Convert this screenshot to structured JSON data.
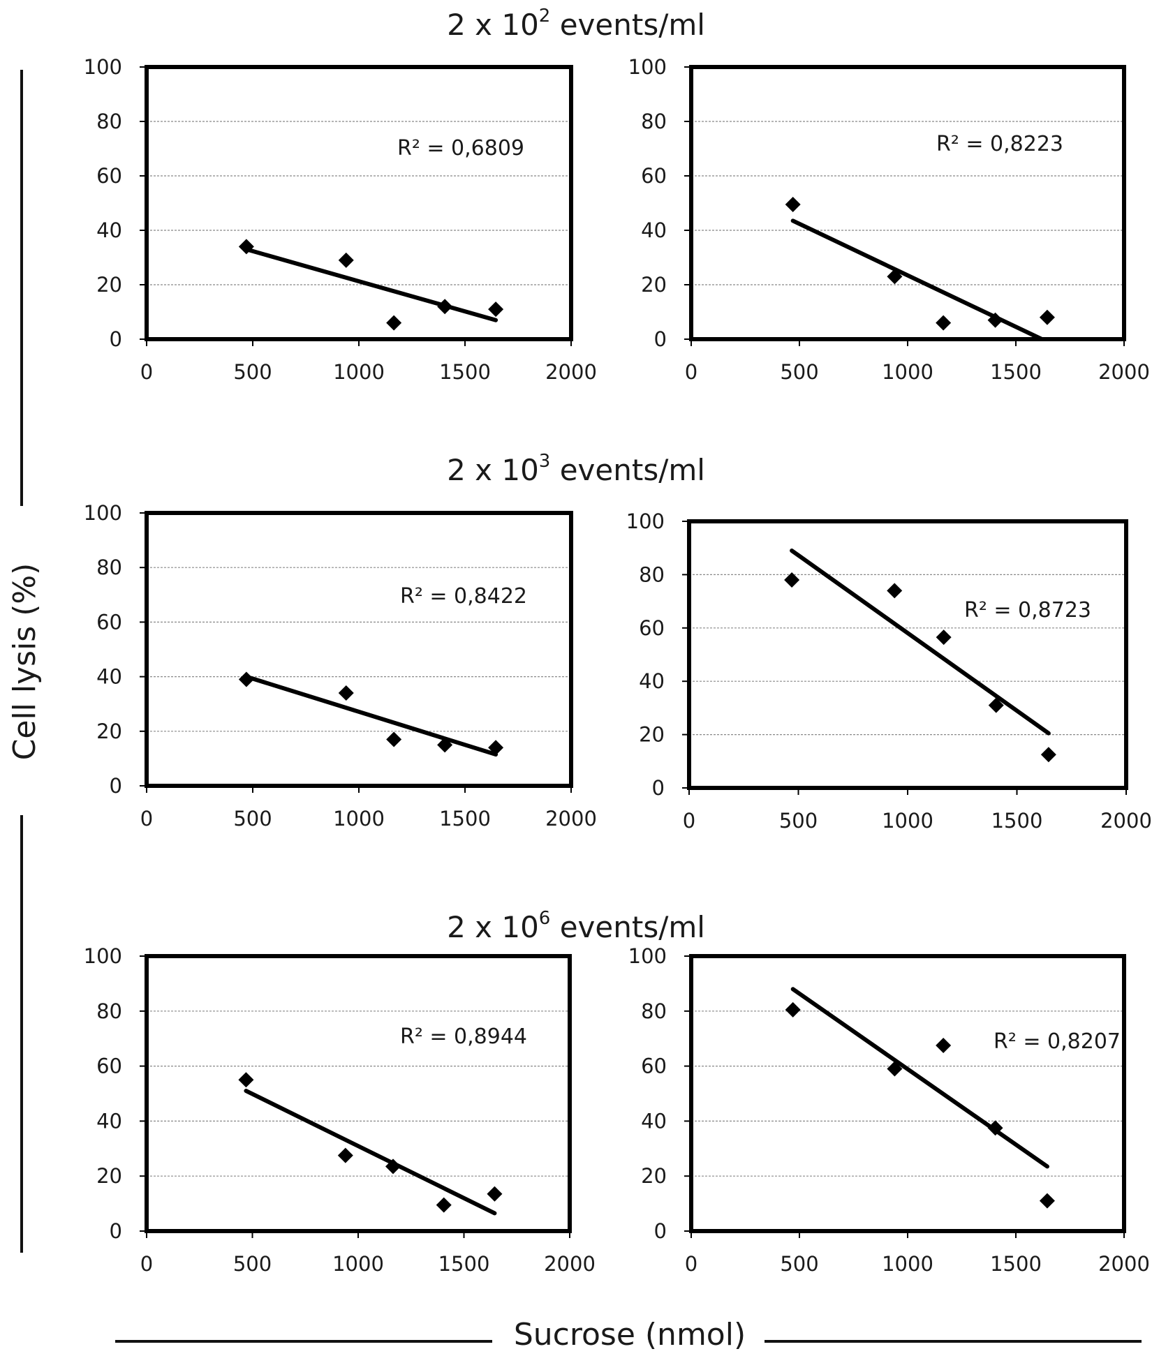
{
  "figure": {
    "ylabel": "Cell lysis (%)",
    "xlabel": "Sucrose (nmol)",
    "row_titles": [
      {
        "prefix": "2 x 10",
        "exponent": "2",
        "suffix": " events/ml"
      },
      {
        "prefix": "2 x 10",
        "exponent": "3",
        "suffix": " events/ml"
      },
      {
        "prefix": "2 x 10",
        "exponent": "6",
        "suffix": " events/ml"
      }
    ]
  },
  "chart_data": [
    {
      "type": "scatter",
      "id": "r1-left",
      "row": 1,
      "col": "left",
      "x": [
        470,
        940,
        1165,
        1405,
        1645
      ],
      "y": [
        34,
        29,
        6,
        12,
        11
      ],
      "trendline": {
        "x": [
          470,
          1645
        ],
        "y": [
          33,
          7
        ]
      },
      "r2_label": "R² = 0,6809",
      "xlim": [
        0,
        2000
      ],
      "ylim": [
        0,
        100
      ],
      "xticks": [
        "0",
        "500",
        "1000",
        "1500",
        "2000"
      ],
      "yticks": [
        "0",
        "20",
        "40",
        "60",
        "80",
        "100"
      ],
      "grid": true
    },
    {
      "type": "scatter",
      "id": "r1-right",
      "row": 1,
      "col": "right",
      "x": [
        470,
        940,
        1165,
        1405,
        1645
      ],
      "y": [
        49.5,
        23,
        6,
        7,
        8
      ],
      "trendline": {
        "x": [
          470,
          1620
        ],
        "y": [
          43.5,
          0
        ]
      },
      "r2_label": "R² = 0,8223",
      "xlim": [
        0,
        2000
      ],
      "ylim": [
        0,
        100
      ],
      "xticks": [
        "0",
        "500",
        "1000",
        "1500",
        "2000"
      ],
      "yticks": [
        "0",
        "20",
        "40",
        "60",
        "80",
        "100"
      ],
      "grid": true
    },
    {
      "type": "scatter",
      "id": "r2-left",
      "row": 2,
      "col": "left",
      "x": [
        470,
        940,
        1165,
        1405,
        1645
      ],
      "y": [
        39,
        34,
        17,
        15,
        14
      ],
      "trendline": {
        "x": [
          470,
          1645
        ],
        "y": [
          40,
          11.5
        ]
      },
      "r2_label": "R² = 0,8422",
      "xlim": [
        0,
        2000
      ],
      "ylim": [
        0,
        100
      ],
      "xticks": [
        "0",
        "500",
        "1000",
        "1500",
        "2000"
      ],
      "yticks": [
        "0",
        "20",
        "40",
        "60",
        "80",
        "100"
      ],
      "grid": true
    },
    {
      "type": "scatter",
      "id": "r2-right",
      "row": 2,
      "col": "right",
      "x": [
        470,
        940,
        1165,
        1405,
        1645
      ],
      "y": [
        78,
        74,
        56.5,
        31,
        12.5
      ],
      "trendline": {
        "x": [
          470,
          1645
        ],
        "y": [
          89,
          20.5
        ]
      },
      "r2_label": "R² = 0,8723",
      "xlim": [
        0,
        2000
      ],
      "ylim": [
        0,
        100
      ],
      "xticks": [
        "0",
        "500",
        "1000",
        "1500",
        "2000"
      ],
      "yticks": [
        "0",
        "20",
        "40",
        "60",
        "80",
        "100"
      ],
      "grid": true
    },
    {
      "type": "scatter",
      "id": "r3-left",
      "row": 3,
      "col": "left",
      "x": [
        470,
        940,
        1165,
        1405,
        1645
      ],
      "y": [
        55,
        27.5,
        23.5,
        9.5,
        13.5
      ],
      "trendline": {
        "x": [
          470,
          1645
        ],
        "y": [
          51,
          6.5
        ]
      },
      "r2_label": "R² = 0,8944",
      "xlim": [
        0,
        2000
      ],
      "ylim": [
        0,
        100
      ],
      "xticks": [
        "0",
        "500",
        "1000",
        "1500",
        "2000"
      ],
      "yticks": [
        "0",
        "20",
        "40",
        "60",
        "80",
        "100"
      ],
      "grid": true
    },
    {
      "type": "scatter",
      "id": "r3-right",
      "row": 3,
      "col": "right",
      "x": [
        470,
        940,
        1165,
        1405,
        1645
      ],
      "y": [
        80.5,
        59,
        67.5,
        37.5,
        11
      ],
      "trendline": {
        "x": [
          470,
          1645
        ],
        "y": [
          88,
          23.5
        ]
      },
      "r2_label": "R² = 0,8207",
      "xlim": [
        0,
        2000
      ],
      "ylim": [
        0,
        100
      ],
      "xticks": [
        "0",
        "500",
        "1000",
        "1500",
        "2000"
      ],
      "yticks": [
        "0",
        "20",
        "40",
        "60",
        "80",
        "100"
      ],
      "grid": true
    }
  ]
}
